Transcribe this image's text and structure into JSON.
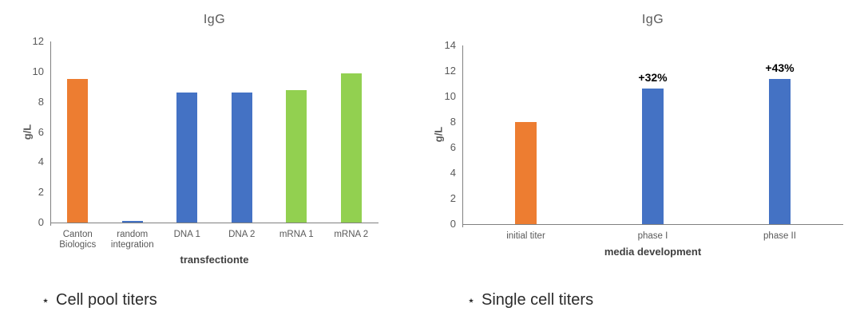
{
  "page": {
    "background": "#ffffff"
  },
  "captions": {
    "left_marker": "⋆",
    "left_text": "Cell pool titers",
    "right_marker": "⋆",
    "right_text": "Single cell titers"
  },
  "colors": {
    "orange": "#ED7D31",
    "blue": "#4472C4",
    "green": "#92D050",
    "axis_line": "#808080",
    "axis_text": "#595959",
    "annotation_text": "#000000"
  },
  "chart_data": [
    {
      "type": "bar",
      "title": "IgG",
      "xlabel": "transfectionte",
      "ylabel": "g/L",
      "ylim": [
        0,
        12
      ],
      "yticks": [
        0,
        2,
        4,
        6,
        8,
        10,
        12
      ],
      "grid": false,
      "legend": "none",
      "categories": [
        "Canton Biologics",
        "random integration",
        "DNA 1",
        "DNA 2",
        "mRNA 1",
        "mRNA 2"
      ],
      "values": [
        9.5,
        0.1,
        8.6,
        8.6,
        8.8,
        9.9
      ],
      "bar_colors": [
        "#ED7D31",
        "#4472C4",
        "#4472C4",
        "#4472C4",
        "#92D050",
        "#92D050"
      ],
      "annotations": [
        "",
        "",
        "",
        "",
        "",
        ""
      ]
    },
    {
      "type": "bar",
      "title": "IgG",
      "xlabel": "media development",
      "ylabel": "g/L",
      "ylim": [
        0,
        14
      ],
      "yticks": [
        0,
        2,
        4,
        6,
        8,
        10,
        12,
        14
      ],
      "grid": false,
      "legend": "none",
      "categories": [
        "initial titer",
        "phase I",
        "phase II"
      ],
      "values": [
        8.0,
        10.6,
        11.4
      ],
      "bar_colors": [
        "#ED7D31",
        "#4472C4",
        "#4472C4"
      ],
      "annotations": [
        "",
        "+32%",
        "+43%"
      ]
    }
  ]
}
